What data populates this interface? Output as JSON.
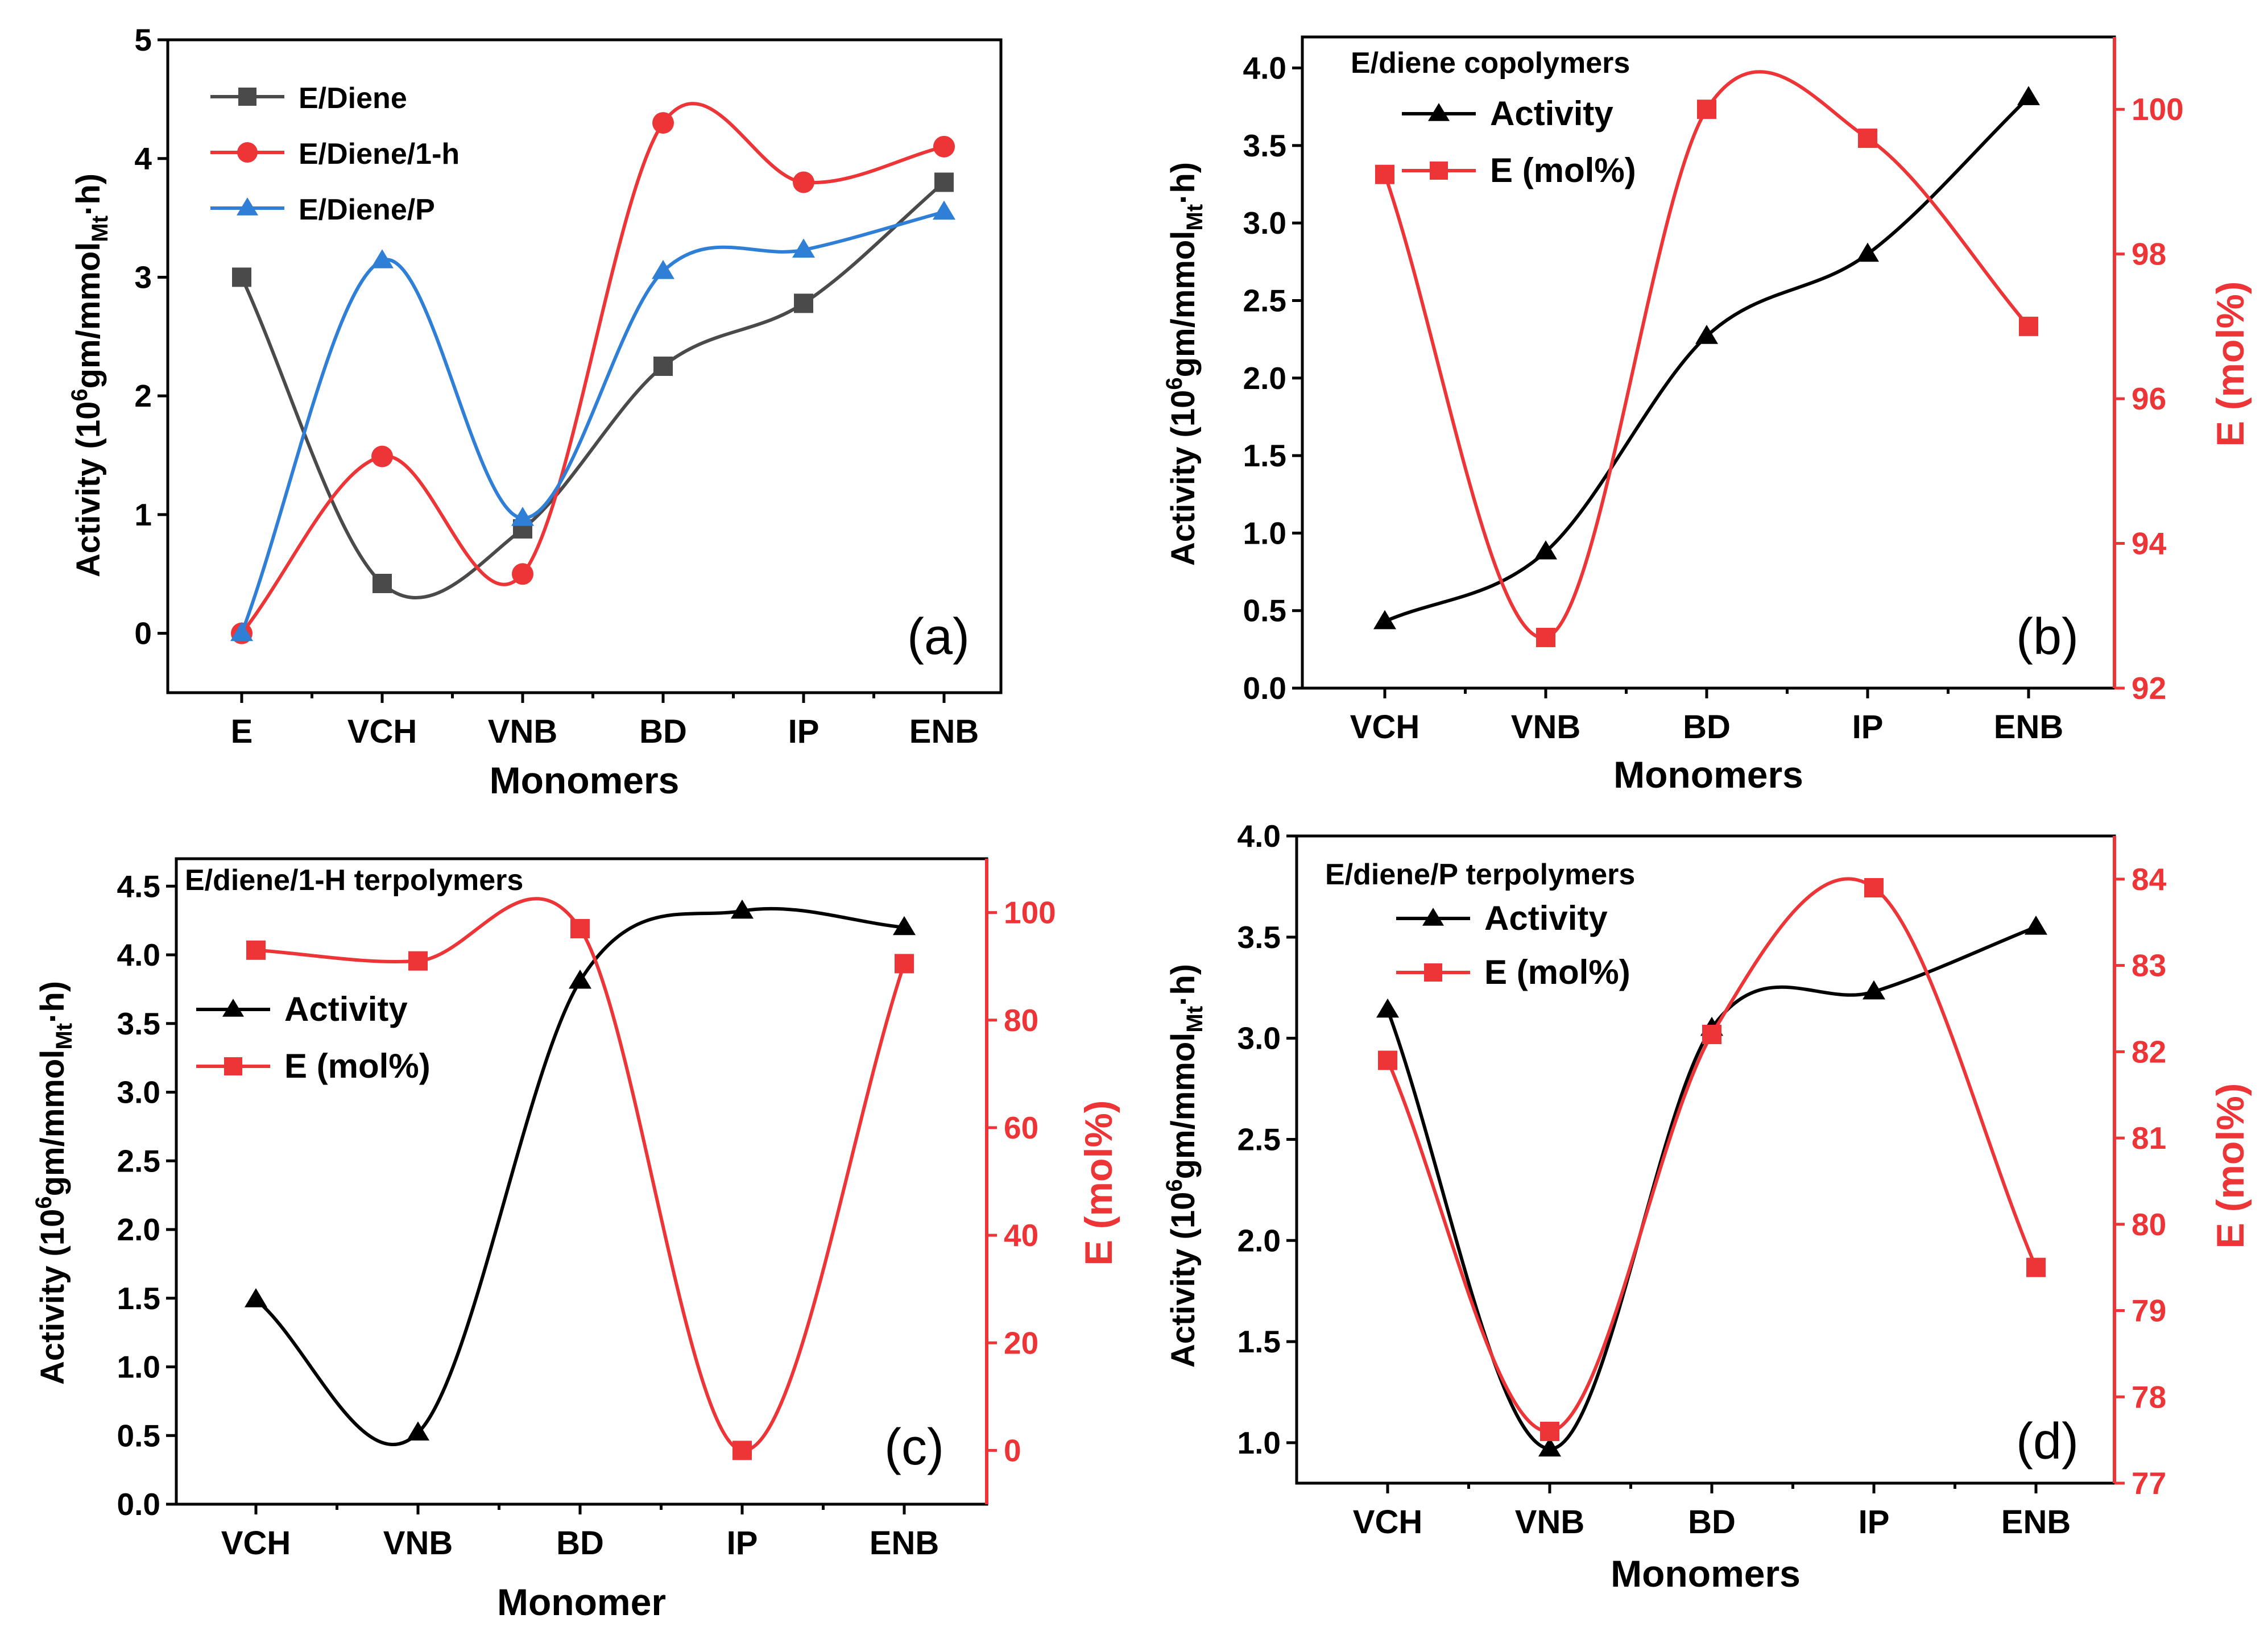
{
  "colors": {
    "black": "#000000",
    "gray": "#4a4a4a",
    "red": "#ed3437",
    "blue": "#2f7fd6"
  },
  "chart_data": [
    {
      "panel": "(a)",
      "type": "scatter",
      "title": "",
      "xlabel": "Monomers",
      "ylabel": "Activity (10^6gm/mmol_Mt·h)",
      "categories": [
        "E",
        "VCH",
        "VNB",
        "BD",
        "IP",
        "ENB"
      ],
      "ylim": [
        -0.5,
        5
      ],
      "yticks": [
        0,
        1,
        2,
        3,
        4,
        5
      ],
      "legend_position": "top-left",
      "series": [
        {
          "name": "E/Diene",
          "marker": "square",
          "color": "#4a4a4a",
          "values": [
            3.0,
            0.42,
            0.88,
            2.25,
            2.78,
            3.8
          ]
        },
        {
          "name": "E/Diene/1-h",
          "marker": "circle",
          "color": "#ed3437",
          "values": [
            0.0,
            1.49,
            0.5,
            4.3,
            3.8,
            4.1
          ]
        },
        {
          "name": "E/Diene/P",
          "marker": "triangle",
          "color": "#2f7fd6",
          "values": [
            0.0,
            3.14,
            0.97,
            3.05,
            3.23,
            3.55
          ]
        }
      ]
    },
    {
      "panel": "(b)",
      "type": "scatter",
      "title": "E/diene copolymers",
      "xlabel": "Monomers",
      "ylabel": "Activity (10^6gm/mmol_Mt·h)",
      "y2label": "E (mol%)",
      "categories": [
        "VCH",
        "VNB",
        "BD",
        "IP",
        "ENB"
      ],
      "ylim": [
        0,
        4.2
      ],
      "y2lim": [
        92,
        101
      ],
      "yticks": [
        0.0,
        0.5,
        1.0,
        1.5,
        2.0,
        2.5,
        3.0,
        3.5,
        4.0
      ],
      "y2ticks": [
        92,
        94,
        96,
        98,
        100
      ],
      "legend_position": "top-left",
      "series": [
        {
          "name": "Activity",
          "marker": "triangle",
          "color": "#000000",
          "axis": "left",
          "values": [
            0.43,
            0.88,
            2.27,
            2.8,
            3.81
          ]
        },
        {
          "name": "E (mol%)",
          "marker": "square",
          "color": "#ed3437",
          "axis": "right",
          "values": [
            99.1,
            92.7,
            100.0,
            99.6,
            97.0
          ]
        }
      ]
    },
    {
      "panel": "(c)",
      "type": "scatter",
      "title": "E/diene/1-H terpolymers",
      "xlabel": "Monomer",
      "ylabel": "Activity (10^6gm/mmol_Mt·h)",
      "y2label": "E (mol%)",
      "categories": [
        "VCH",
        "VNB",
        "BD",
        "IP",
        "ENB"
      ],
      "ylim": [
        0,
        4.7
      ],
      "y2lim": [
        -10,
        110
      ],
      "yticks": [
        0.0,
        0.5,
        1.0,
        1.5,
        2.0,
        2.5,
        3.0,
        3.5,
        4.0,
        4.5
      ],
      "y2ticks": [
        0,
        20,
        40,
        60,
        80,
        100
      ],
      "legend_position": "upper-left",
      "series": [
        {
          "name": "Activity",
          "marker": "triangle",
          "color": "#000000",
          "axis": "left",
          "values": [
            1.49,
            0.52,
            3.81,
            4.32,
            4.2
          ]
        },
        {
          "name": "E (mol%)",
          "marker": "square",
          "color": "#ed3437",
          "axis": "right",
          "values": [
            93,
            91,
            97,
            0,
            90.5
          ]
        }
      ]
    },
    {
      "panel": "(d)",
      "type": "scatter",
      "title": "E/diene/P terpolymers",
      "xlabel": "Monomers",
      "ylabel": "Activity (10^6gm/mmol_Mt·h)",
      "y2label": "E (mol%)",
      "categories": [
        "VCH",
        "VNB",
        "BD",
        "IP",
        "ENB"
      ],
      "ylim": [
        0.8,
        4.0
      ],
      "y2lim": [
        77,
        84.5
      ],
      "yticks": [
        1.0,
        1.5,
        2.0,
        2.5,
        3.0,
        3.5,
        4.0
      ],
      "y2ticks": [
        77,
        78,
        79,
        80,
        81,
        82,
        83,
        84
      ],
      "legend_position": "top-left",
      "series": [
        {
          "name": "Activity",
          "marker": "triangle",
          "color": "#000000",
          "axis": "left",
          "values": [
            3.14,
            0.97,
            3.05,
            3.23,
            3.55
          ]
        },
        {
          "name": "E (mol%)",
          "marker": "square",
          "color": "#ed3437",
          "axis": "right",
          "values": [
            81.9,
            77.6,
            82.2,
            83.9,
            79.5
          ]
        }
      ]
    }
  ]
}
